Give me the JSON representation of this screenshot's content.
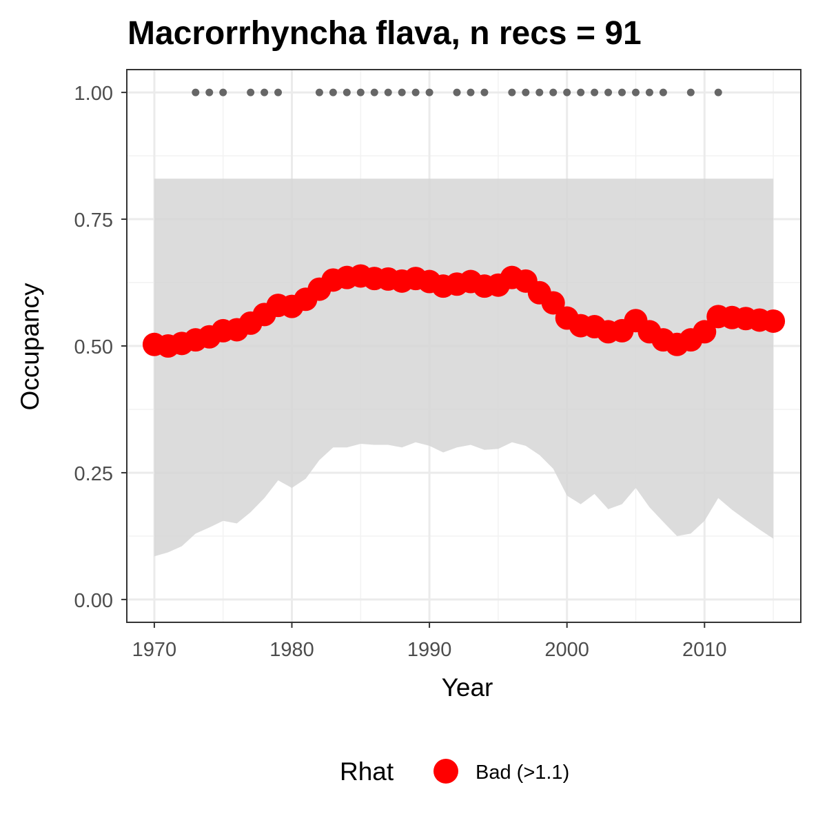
{
  "chart_data": {
    "type": "line",
    "title": "Macrorrhyncha flava, n recs = 91",
    "xlabel": "Year",
    "ylabel": "Occupancy",
    "xlim": [
      1968,
      2017
    ],
    "ylim": [
      -0.045,
      1.045
    ],
    "x_ticks": [
      1970,
      1980,
      1990,
      2000,
      2010
    ],
    "x_tick_labels": [
      "1970",
      "1980",
      "1990",
      "2000",
      "2010"
    ],
    "y_ticks": [
      0,
      0.25,
      0.5,
      0.75,
      1.0
    ],
    "y_tick_labels": [
      "0.00",
      "0.25",
      "0.50",
      "0.75",
      "1.00"
    ],
    "grid": true,
    "years": [
      1970,
      1971,
      1972,
      1973,
      1974,
      1975,
      1976,
      1977,
      1978,
      1979,
      1980,
      1981,
      1982,
      1983,
      1984,
      1985,
      1986,
      1987,
      1988,
      1989,
      1990,
      1991,
      1992,
      1993,
      1994,
      1995,
      1996,
      1997,
      1998,
      1999,
      2000,
      2001,
      2002,
      2003,
      2004,
      2005,
      2006,
      2007,
      2008,
      2009,
      2010,
      2011,
      2012,
      2013,
      2014,
      2015
    ],
    "series": [
      {
        "values": [
          0.503,
          0.5,
          0.505,
          0.512,
          0.518,
          0.53,
          0.532,
          0.545,
          0.562,
          0.58,
          0.578,
          0.592,
          0.612,
          0.63,
          0.635,
          0.638,
          0.633,
          0.632,
          0.628,
          0.633,
          0.627,
          0.618,
          0.622,
          0.627,
          0.618,
          0.62,
          0.635,
          0.628,
          0.605,
          0.585,
          0.555,
          0.54,
          0.538,
          0.528,
          0.53,
          0.55,
          0.528,
          0.512,
          0.503,
          0.512,
          0.528,
          0.558,
          0.556,
          0.554,
          0.551,
          0.549
        ],
        "rhat_category": "Bad (>1.1)",
        "color": "#FF0000"
      }
    ],
    "ci_upper": [
      0.83,
      0.83,
      0.83,
      0.83,
      0.83,
      0.83,
      0.83,
      0.83,
      0.83,
      0.83,
      0.83,
      0.83,
      0.83,
      0.83,
      0.83,
      0.83,
      0.83,
      0.83,
      0.83,
      0.83,
      0.83,
      0.83,
      0.83,
      0.83,
      0.83,
      0.83,
      0.83,
      0.83,
      0.83,
      0.83,
      0.83,
      0.83,
      0.83,
      0.83,
      0.83,
      0.83,
      0.83,
      0.83,
      0.83,
      0.83,
      0.83,
      0.83,
      0.83,
      0.83,
      0.83,
      0.83
    ],
    "ci_lower": [
      0.085,
      0.093,
      0.105,
      0.13,
      0.142,
      0.155,
      0.15,
      0.172,
      0.2,
      0.235,
      0.22,
      0.238,
      0.275,
      0.3,
      0.3,
      0.307,
      0.305,
      0.305,
      0.3,
      0.31,
      0.303,
      0.29,
      0.3,
      0.305,
      0.295,
      0.297,
      0.31,
      0.303,
      0.285,
      0.258,
      0.205,
      0.188,
      0.208,
      0.178,
      0.188,
      0.22,
      0.182,
      0.153,
      0.125,
      0.13,
      0.155,
      0.2,
      0.177,
      0.157,
      0.138,
      0.12
    ],
    "ci_color": "#d6d6d6",
    "record_years": [
      1973,
      1974,
      1975,
      1977,
      1978,
      1979,
      1982,
      1983,
      1984,
      1985,
      1986,
      1987,
      1988,
      1989,
      1990,
      1992,
      1993,
      1994,
      1996,
      1997,
      1998,
      1999,
      2000,
      2001,
      2002,
      2003,
      2004,
      2005,
      2006,
      2007,
      2009,
      2011
    ],
    "record_y": 1.0,
    "record_color": "#666666",
    "legend": {
      "title": "Rhat",
      "entries": [
        {
          "label": "Bad (>1.1)",
          "color": "#FF0000"
        }
      ],
      "position": "bottom"
    }
  }
}
